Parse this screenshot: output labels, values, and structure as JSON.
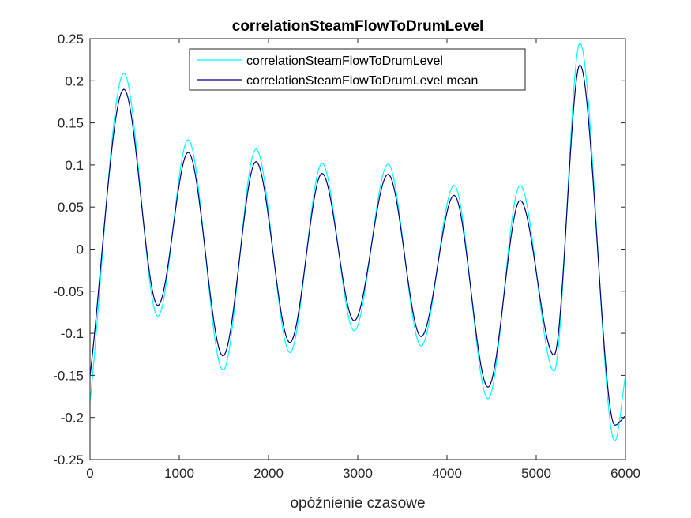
{
  "chart_data": {
    "type": "line",
    "title": "correlationSteamFlowToDrumLevel",
    "xlabel": "opóźnienie czasowe",
    "ylabel": "",
    "xlim": [
      0,
      6000
    ],
    "ylim": [
      -0.25,
      0.25
    ],
    "xticks": [
      0,
      1000,
      2000,
      3000,
      4000,
      5000,
      6000
    ],
    "yticks": [
      -0.25,
      -0.2,
      -0.15,
      -0.1,
      -0.05,
      0,
      0.05,
      0.1,
      0.15,
      0.2,
      0.25
    ],
    "xtick_labels": [
      "0",
      "1000",
      "2000",
      "3000",
      "4000",
      "5000",
      "6000"
    ],
    "ytick_labels": [
      "-0.25",
      "-0.2",
      "-0.15",
      "-0.1",
      "-0.05",
      "0",
      "0.05",
      "0.1",
      "0.15",
      "0.2",
      "0.25"
    ],
    "grid": false,
    "legend_position": "top-right",
    "series": [
      {
        "name": "correlationSteamFlowToDrumLevel",
        "color": "#00FFFF",
        "points": [
          [
            0,
            -0.182
          ],
          [
            380,
            0.209
          ],
          [
            760,
            -0.08
          ],
          [
            1100,
            0.13
          ],
          [
            1490,
            -0.144
          ],
          [
            1860,
            0.119
          ],
          [
            2240,
            -0.123
          ],
          [
            2600,
            0.102
          ],
          [
            2960,
            -0.097
          ],
          [
            3340,
            0.101
          ],
          [
            3710,
            -0.115
          ],
          [
            4080,
            0.076
          ],
          [
            4460,
            -0.178
          ],
          [
            4820,
            0.076
          ],
          [
            5200,
            -0.145
          ],
          [
            5490,
            0.245
          ],
          [
            5880,
            -0.228
          ],
          [
            6000,
            -0.15
          ]
        ]
      },
      {
        "name": "correlationSteamFlowToDrumLevel mean",
        "color": "#00007F",
        "points": [
          [
            0,
            -0.151
          ],
          [
            380,
            0.19
          ],
          [
            760,
            -0.067
          ],
          [
            1100,
            0.115
          ],
          [
            1490,
            -0.127
          ],
          [
            1860,
            0.104
          ],
          [
            2240,
            -0.111
          ],
          [
            2600,
            0.09
          ],
          [
            2960,
            -0.085
          ],
          [
            3340,
            0.089
          ],
          [
            3710,
            -0.104
          ],
          [
            4080,
            0.064
          ],
          [
            4460,
            -0.164
          ],
          [
            4820,
            0.058
          ],
          [
            5200,
            -0.126
          ],
          [
            5490,
            0.219
          ],
          [
            5880,
            -0.209
          ],
          [
            6000,
            -0.198
          ]
        ]
      }
    ]
  }
}
